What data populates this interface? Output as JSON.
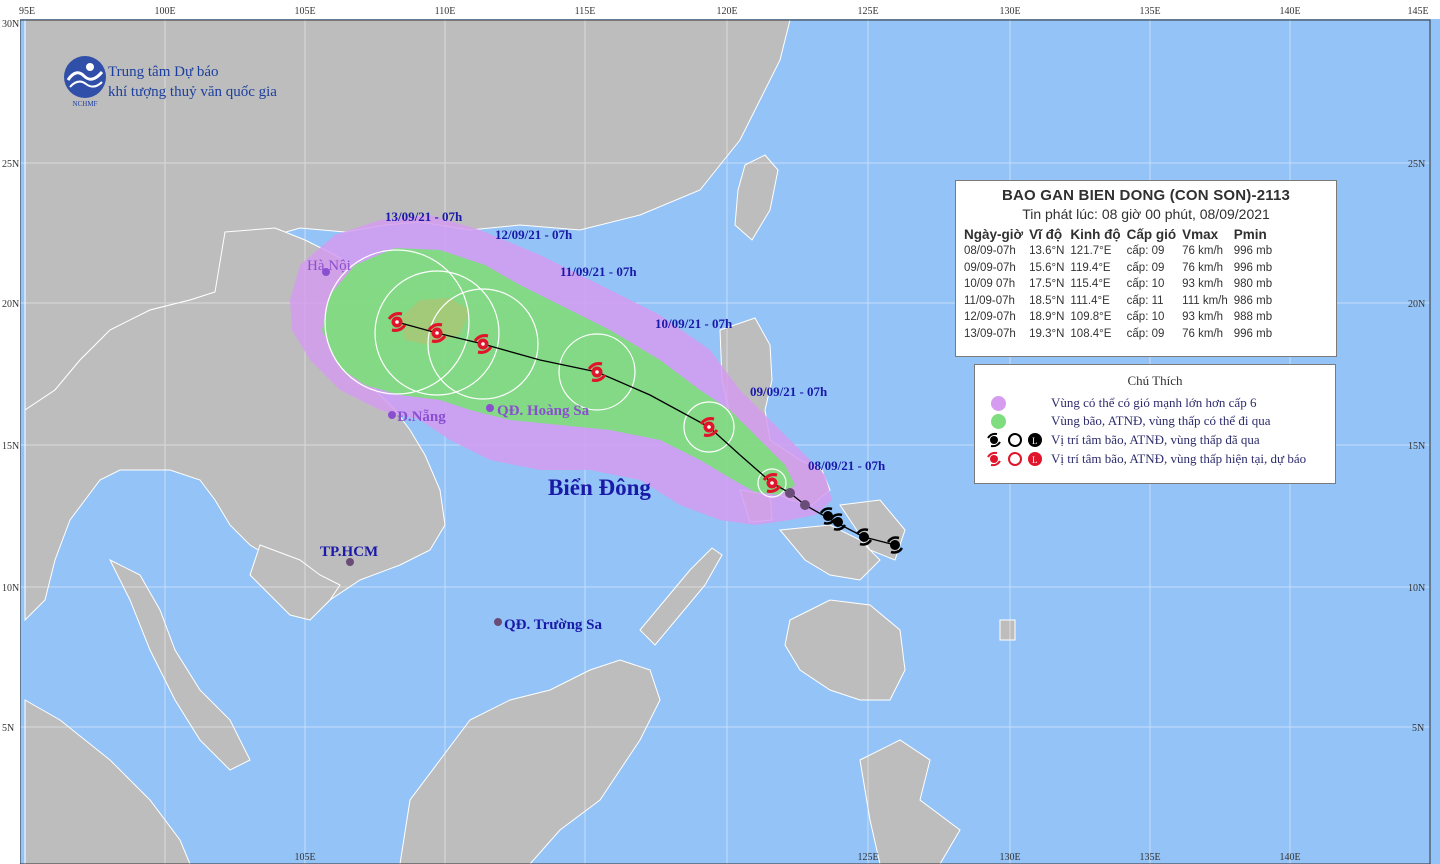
{
  "agency": {
    "line1": "Trung tâm Dự báo",
    "line2": "khí tượng thuỷ văn quốc gia",
    "logo_text": "NCHMF"
  },
  "info": {
    "title": "BAO GAN BIEN DONG (CON SON)-2113",
    "issue_time": "Tin phát lúc: 08 giờ 00 phút, 08/09/2021",
    "headers": [
      "Ngày-giờ",
      "Vĩ độ",
      "Kinh độ",
      "Cấp gió",
      "Vmax",
      "Pmin"
    ],
    "rows": [
      [
        "08/09-07h",
        "13.6°N",
        "121.7°E",
        "cấp: 09",
        "76 km/h",
        "996 mb"
      ],
      [
        "09/09-07h",
        "15.6°N",
        "119.4°E",
        "cấp: 09",
        "76 km/h",
        "996 mb"
      ],
      [
        "10/09 07h",
        "17.5°N",
        "115.4°E",
        "cấp: 10",
        "93 km/h",
        "980 mb"
      ],
      [
        "11/09-07h",
        "18.5°N",
        "111.4°E",
        "cấp: 11",
        "111 km/h",
        "986 mb"
      ],
      [
        "12/09-07h",
        "18.9°N",
        "109.8°E",
        "cấp: 10",
        "93 km/h",
        "988 mb"
      ],
      [
        "13/09-07h",
        "19.3°N",
        "108.4°E",
        "cấp: 09",
        "76 km/h",
        "996 mb"
      ]
    ]
  },
  "legend": {
    "title": "Chú Thích",
    "items": [
      {
        "text": "Vùng có thể có gió mạnh lớn hơn cấp 6",
        "color": "#d59cf0"
      },
      {
        "text": "Vùng bão, ATNĐ, vùng thấp có thể đi qua",
        "color": "#7fdc7f"
      },
      {
        "text": "Vị trí tâm bão, ATNĐ, vùng thấp đã qua",
        "color": "#000000"
      },
      {
        "text": "Vị trí tâm bão, ATNĐ, vùng thấp hiện tại, dự báo",
        "color": "#e0142a"
      }
    ]
  },
  "axes": {
    "lon_labels": [
      "95E",
      "100E",
      "105E",
      "110E",
      "115E",
      "120E",
      "125E",
      "130E",
      "135E",
      "140E",
      "145E"
    ],
    "lat_labels": [
      "30N",
      "25N",
      "20N",
      "15N",
      "10N",
      "5N"
    ]
  },
  "places": {
    "sea": "Biển Đông",
    "hanoi": "Hà Nội",
    "danang": "Đ.Nẵng",
    "hoangsa": "QĐ. Hoàng Sa",
    "hcm": "TP.HCM",
    "truongsa": "QĐ. Trường Sa"
  },
  "forecast_labels": {
    "d13": "13/09/21 - 07h",
    "d12": "12/09/21 - 07h",
    "d11": "11/09/21 - 07h",
    "d10": "10/09/21 - 07h",
    "d09": "09/09/21 - 07h",
    "d08": "08/09/21 - 07h"
  },
  "colors": {
    "sea": "#94c3f7",
    "land": "#bdbdbd",
    "wind_zone": "#d59cf0",
    "storm_zone": "#7fdc7f",
    "current_storm": "#e0142a",
    "date_label": "#1a1aa8",
    "place_label": "#8a4fd0"
  }
}
